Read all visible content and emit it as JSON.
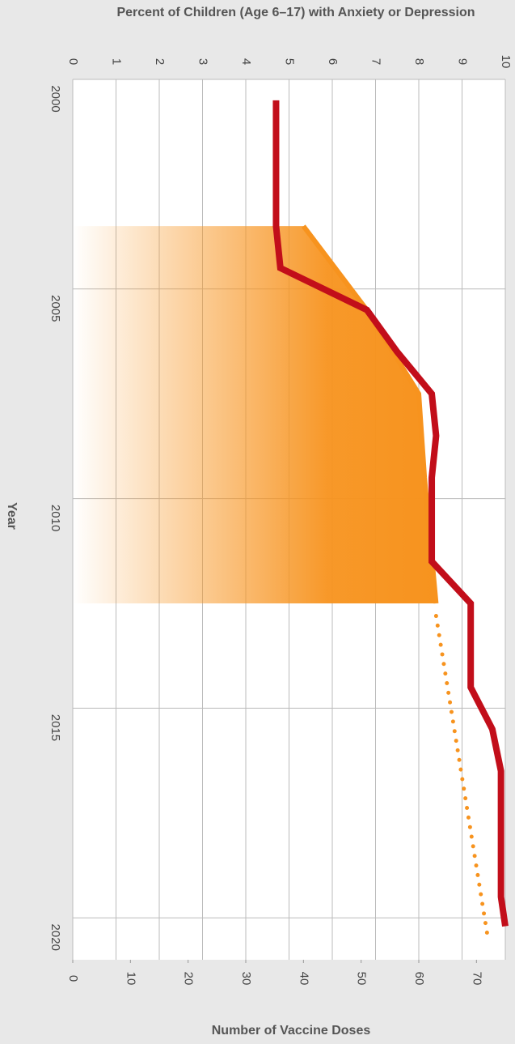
{
  "chart_data": {
    "type": "line",
    "title": "Percent of Children (Age 6–17) with Anxiety or Depression",
    "x_label": "Year",
    "y2_label": "Number of Vaccine Doses",
    "xlim": [
      2000,
      2021
    ],
    "xticks": [
      2000,
      2005,
      2010,
      2015,
      2020
    ],
    "ylim": [
      0,
      10
    ],
    "yticks": [
      0,
      1,
      2,
      3,
      4,
      5,
      6,
      7,
      8,
      9,
      10
    ],
    "y2lim": [
      0,
      75
    ],
    "y2ticks": [
      0,
      10,
      20,
      30,
      40,
      50,
      60,
      70
    ],
    "grid": true,
    "series": [
      {
        "color": "#c20e1a",
        "x": [
          2000.5,
          2003.5,
          2004.5,
          2005.5,
          2006.5,
          2007.5,
          2008.5,
          2009.5,
          2011.5,
          2012.5,
          2014.5,
          2015.5,
          2016.5,
          2019.5,
          2020.2
        ],
        "values": [
          4.7,
          4.7,
          4.8,
          6.8,
          7.5,
          8.3,
          8.4,
          8.3,
          8.3,
          9.2,
          9.2,
          9.7,
          9.9,
          9.9,
          10
        ]
      },
      {
        "color": "#f7931e",
        "axis": "y2",
        "area": true,
        "x": [
          2003.5,
          2005.5,
          2007.5,
          2009.5,
          2012.5
        ],
        "values": [
          40,
          51,
          60,
          61,
          63
        ]
      },
      {
        "color": "#f7931e",
        "axis": "y2",
        "dotted": true,
        "x": [
          2012.8,
          2020.5
        ],
        "values": [
          63,
          72
        ]
      }
    ]
  }
}
